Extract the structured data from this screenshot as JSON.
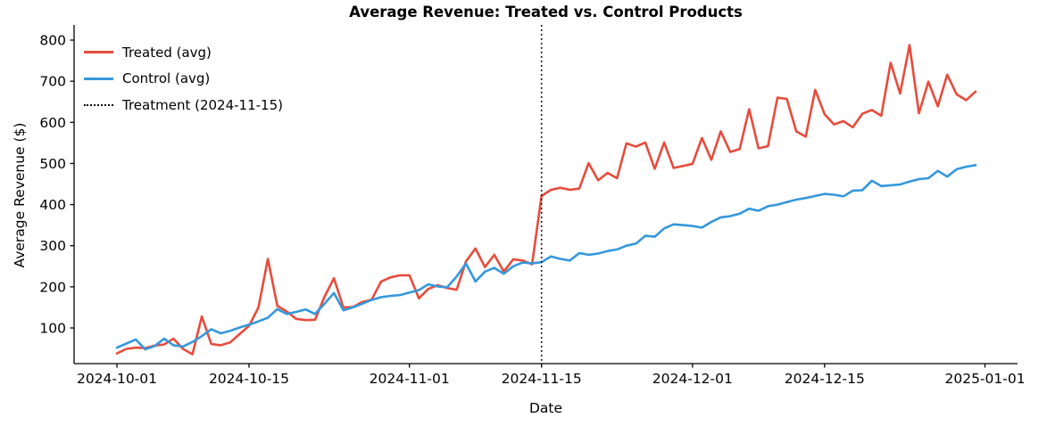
{
  "chart_data": {
    "type": "line",
    "title": "Average Revenue: Treated vs. Control Products",
    "xlabel": "Date",
    "ylabel": "Average Revenue ($)",
    "grid": false,
    "legend_position": "upper-left",
    "ylim": [
      13,
      832
    ],
    "y_ticks": [
      100,
      200,
      300,
      400,
      500,
      600,
      700,
      800
    ],
    "x_ticks": [
      {
        "label": "2024-10-01",
        "day": 0
      },
      {
        "label": "2024-10-15",
        "day": 14
      },
      {
        "label": "2024-11-01",
        "day": 31
      },
      {
        "label": "2024-11-15",
        "day": 45
      },
      {
        "label": "2024-12-01",
        "day": 61
      },
      {
        "label": "2024-12-15",
        "day": 75
      },
      {
        "label": "2025-01-01",
        "day": 92
      }
    ],
    "treatment_marker": {
      "label": "Treatment (2024-11-15)",
      "date": "2024-11-15",
      "day_index": 45,
      "color": "#000000",
      "style": "dotted"
    },
    "legend": [
      {
        "label": "Treated (avg)",
        "color": "#e74c3c",
        "style": "solid"
      },
      {
        "label": "Control (avg)",
        "color": "#3498db",
        "style": "solid"
      },
      {
        "label": "Treatment (2024-11-15)",
        "color": "#000000",
        "style": "dotted"
      }
    ],
    "dates": [
      "2024-10-01",
      "2024-10-02",
      "2024-10-03",
      "2024-10-04",
      "2024-10-05",
      "2024-10-06",
      "2024-10-07",
      "2024-10-08",
      "2024-10-09",
      "2024-10-10",
      "2024-10-11",
      "2024-10-12",
      "2024-10-13",
      "2024-10-14",
      "2024-10-15",
      "2024-10-16",
      "2024-10-17",
      "2024-10-18",
      "2024-10-19",
      "2024-10-20",
      "2024-10-21",
      "2024-10-22",
      "2024-10-23",
      "2024-10-24",
      "2024-10-25",
      "2024-10-26",
      "2024-10-27",
      "2024-10-28",
      "2024-10-29",
      "2024-10-30",
      "2024-10-31",
      "2024-11-01",
      "2024-11-02",
      "2024-11-03",
      "2024-11-04",
      "2024-11-05",
      "2024-11-06",
      "2024-11-07",
      "2024-11-08",
      "2024-11-09",
      "2024-11-10",
      "2024-11-11",
      "2024-11-12",
      "2024-11-13",
      "2024-11-14",
      "2024-11-15",
      "2024-11-16",
      "2024-11-17",
      "2024-11-18",
      "2024-11-19",
      "2024-11-20",
      "2024-11-21",
      "2024-11-22",
      "2024-11-23",
      "2024-11-24",
      "2024-11-25",
      "2024-11-26",
      "2024-11-27",
      "2024-11-28",
      "2024-11-29",
      "2024-11-30",
      "2024-12-01",
      "2024-12-02",
      "2024-12-03",
      "2024-12-04",
      "2024-12-05",
      "2024-12-06",
      "2024-12-07",
      "2024-12-08",
      "2024-12-09",
      "2024-12-10",
      "2024-12-11",
      "2024-12-12",
      "2024-12-13",
      "2024-12-14",
      "2024-12-15",
      "2024-12-16",
      "2024-12-17",
      "2024-12-18",
      "2024-12-19",
      "2024-12-20",
      "2024-12-21",
      "2024-12-22",
      "2024-12-23",
      "2024-12-24",
      "2024-12-25",
      "2024-12-26",
      "2024-12-27",
      "2024-12-28",
      "2024-12-29",
      "2024-12-30",
      "2024-12-31"
    ],
    "series": [
      {
        "name": "Treated (avg)",
        "color": "#e74c3c",
        "values": [
          38,
          49,
          52,
          51,
          57,
          60,
          74,
          49,
          36,
          128,
          61,
          58,
          65,
          85,
          105,
          150,
          268,
          154,
          140,
          122,
          119,
          120,
          176,
          221,
          150,
          151,
          163,
          169,
          213,
          223,
          228,
          228,
          172,
          195,
          204,
          197,
          193,
          262,
          293,
          248,
          278,
          237,
          267,
          264,
          255,
          421,
          436,
          441,
          436,
          439,
          501,
          459,
          477,
          464,
          549,
          541,
          551,
          487,
          551,
          489,
          494,
          499,
          562,
          509,
          578,
          528,
          535,
          632,
          537,
          542,
          660,
          657,
          578,
          565,
          679,
          620,
          595,
          603,
          588,
          621,
          630,
          616,
          745,
          670,
          788,
          622,
          699,
          639,
          716,
          668,
          654,
          675
        ]
      },
      {
        "name": "Control (avg)",
        "color": "#3498db",
        "values": [
          52,
          62,
          72,
          48,
          56,
          74,
          58,
          55,
          66,
          80,
          97,
          87,
          93,
          101,
          108,
          116,
          125,
          146,
          134,
          139,
          145,
          134,
          159,
          185,
          143,
          150,
          159,
          168,
          175,
          178,
          180,
          186,
          192,
          206,
          201,
          199,
          225,
          257,
          213,
          237,
          246,
          232,
          250,
          259,
          257,
          260,
          274,
          268,
          264,
          282,
          278,
          281,
          287,
          291,
          300,
          305,
          324,
          322,
          342,
          352,
          350,
          348,
          344,
          358,
          369,
          372,
          378,
          390,
          385,
          396,
          400,
          406,
          412,
          416,
          421,
          426,
          424,
          420,
          434,
          435,
          458,
          445,
          447,
          449,
          456,
          462,
          464,
          482,
          468,
          486,
          492,
          496
        ]
      }
    ]
  }
}
